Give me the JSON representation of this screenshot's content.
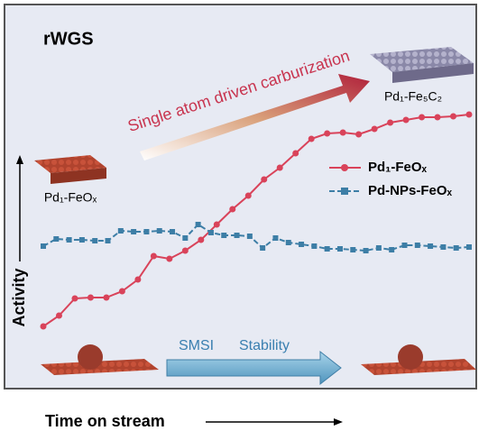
{
  "chart_data": {
    "type": "line",
    "title": "rWGS",
    "x_label": "Time on stream",
    "y_label": "Activity",
    "annotations": {
      "arrow_text": "Single atom driven carburization",
      "top_right_label": "Pd₁-Fe₅C₂",
      "left_label": "Pd₁-FeOₓ",
      "bottom_arrow_left": "SMSI",
      "bottom_arrow_right": "Stability"
    },
    "ylim": [
      0,
      100
    ],
    "series": [
      {
        "name": "Pd₁-FeOₓ",
        "color": "#d9435a",
        "values": [
          17,
          20,
          24.75,
          25,
          25,
          26.75,
          30,
          36.5,
          35.75,
          38,
          41,
          45.25,
          49.5,
          53.25,
          57.75,
          61,
          65,
          69,
          70.5,
          70.75,
          70.25,
          71.75,
          73.5,
          74.25,
          75,
          75,
          75.25,
          75.75
        ]
      },
      {
        "name": "Pd-NPs-FeOₓ",
        "color": "#3d7ea6",
        "values": [
          39.25,
          41.25,
          41,
          41,
          40.75,
          40.75,
          43.5,
          43.25,
          43.25,
          43.5,
          43.25,
          41.5,
          45.25,
          43,
          42.25,
          42.25,
          42,
          38.75,
          41.5,
          40.25,
          39.75,
          39.25,
          38.5,
          38.5,
          38.25,
          38,
          38.75,
          38.25,
          39.5,
          39.5,
          39.25,
          39,
          38.75,
          39
        ]
      }
    ],
    "legend": "right"
  }
}
